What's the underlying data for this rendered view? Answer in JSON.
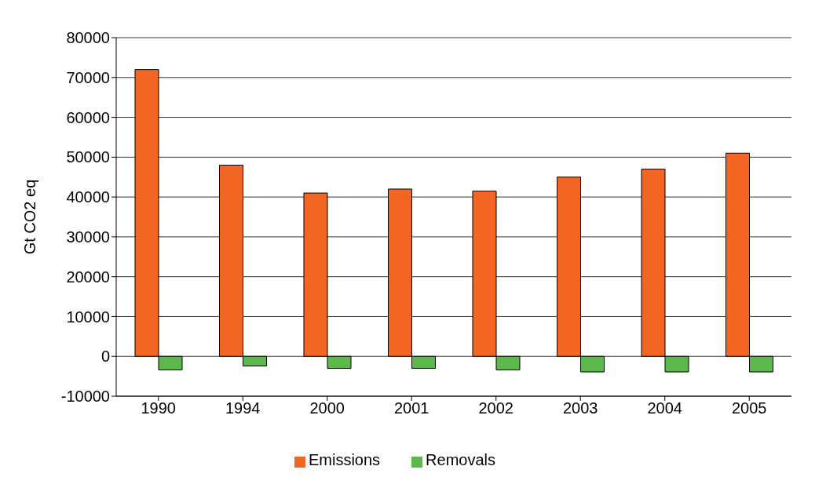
{
  "chart_data": {
    "type": "bar",
    "ylabel": "Gt CO2 eq",
    "categories": [
      "1990",
      "1994",
      "2000",
      "2001",
      "2002",
      "2003",
      "2004",
      "2005"
    ],
    "series": [
      {
        "name": "Emissions",
        "color": "#f26522",
        "values": [
          72000,
          48000,
          41000,
          42000,
          41500,
          45000,
          47000,
          51000
        ]
      },
      {
        "name": "Removals",
        "color": "#5cb84a",
        "values": [
          -3400,
          -2400,
          -3000,
          -3000,
          -3400,
          -3900,
          -3900,
          -3900
        ]
      }
    ],
    "ylim": [
      -10000,
      80000
    ],
    "yticks": [
      -10000,
      0,
      10000,
      20000,
      30000,
      40000,
      50000,
      60000,
      70000,
      80000
    ],
    "grid": "y",
    "legend": "bottom"
  }
}
